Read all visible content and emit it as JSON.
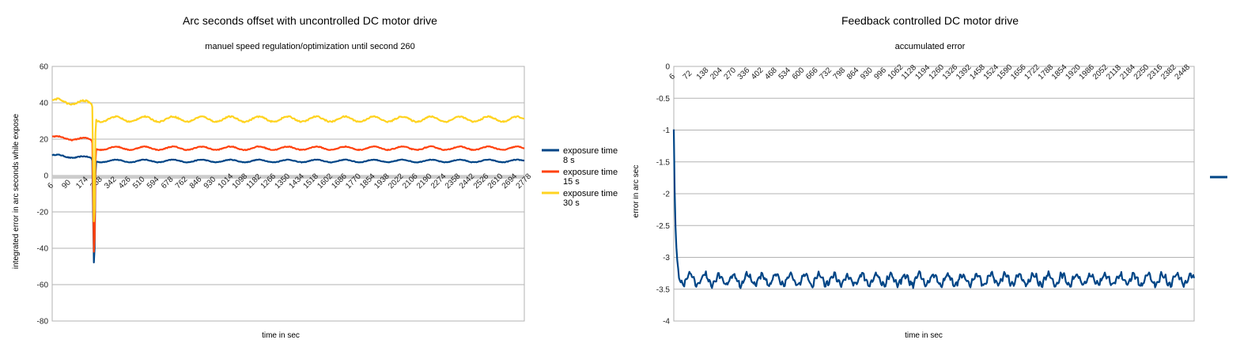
{
  "chart_data": [
    {
      "type": "line",
      "title": "Arc seconds offset with uncontrolled DC motor drive",
      "subtitle": "manuel speed regulation/optimization until second 260",
      "xlabel": "time in sec",
      "ylabel": "integrated error in arc seconds while expose",
      "ylim": [
        -80,
        60
      ],
      "yticks": [
        "60",
        "40",
        "20",
        "0",
        "-20",
        "-40",
        "-60",
        "-80"
      ],
      "xlim": [
        6,
        2800
      ],
      "categories": [
        "6",
        "90",
        "174",
        "258",
        "342",
        "426",
        "510",
        "594",
        "678",
        "762",
        "846",
        "930",
        "1014",
        "1098",
        "1182",
        "1266",
        "1350",
        "1434",
        "1518",
        "1602",
        "1686",
        "1770",
        "1854",
        "1938",
        "2022",
        "2106",
        "2190",
        "2274",
        "2358",
        "2442",
        "2526",
        "2610",
        "2694",
        "2778"
      ],
      "grid": true,
      "legend_position": "right",
      "series": [
        {
          "name": "exposure time 8 s",
          "name_lines": [
            "exposure time",
            "8 s"
          ],
          "color": "#004586",
          "base": 11,
          "settled": 8,
          "amp": 0.7,
          "spike_min": -61
        },
        {
          "name": "exposure time 15 s",
          "name_lines": [
            "exposure time",
            "15 s"
          ],
          "color": "#ff420e",
          "base": 21,
          "settled": 15,
          "amp": 0.9,
          "spike_min": -56
        },
        {
          "name": "exposure time 30 s",
          "name_lines": [
            "exposure time",
            "30 s"
          ],
          "color": "#ffd320",
          "base": 41,
          "settled": 31,
          "amp": 1.4,
          "spike_min": -40
        }
      ],
      "events": {
        "spike_time": 255
      }
    },
    {
      "type": "line",
      "title": "Feedback controlled DC motor drive",
      "subtitle": "accumulated error",
      "xlabel": "time in sec",
      "ylabel": "error in arc sec",
      "ylim": [
        -4,
        0
      ],
      "yticks": [
        "0",
        "-0.5",
        "-1",
        "-1.5",
        "-2",
        "-2.5",
        "-3",
        "-3.5",
        "-4"
      ],
      "xlim": [
        6,
        2520
      ],
      "categories": [
        "6",
        "72",
        "138",
        "204",
        "270",
        "336",
        "402",
        "468",
        "534",
        "600",
        "666",
        "732",
        "798",
        "864",
        "930",
        "996",
        "1062",
        "1128",
        "1194",
        "1260",
        "1326",
        "1392",
        "1458",
        "1524",
        "1590",
        "1656",
        "1722",
        "1788",
        "1854",
        "1920",
        "1986",
        "2052",
        "2118",
        "2184",
        "2250",
        "2316",
        "2382",
        "2448"
      ],
      "grid": true,
      "legend_position": "right",
      "series": [
        {
          "color": "#004586",
          "start": -1.0,
          "settled": -3.35,
          "amp": 0.08
        }
      ]
    }
  ]
}
